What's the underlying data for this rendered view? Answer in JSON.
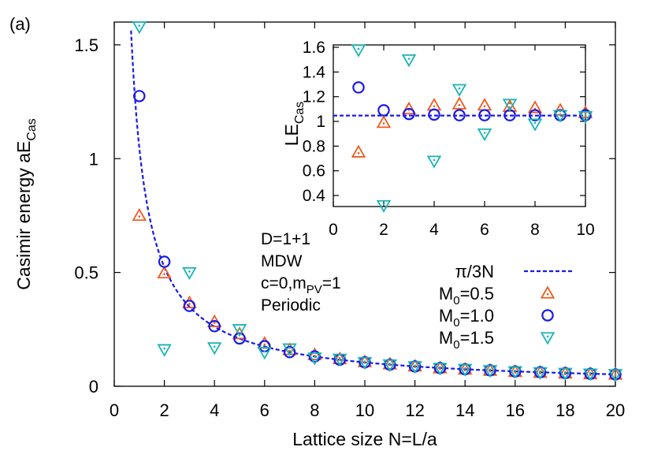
{
  "chart_data": [
    {
      "type": "scatter",
      "panel_label": "(a)",
      "xlabel": "Lattice size N=L/a",
      "ylabel": {
        "main": "Casimir energy aE",
        "sub": "Cas"
      },
      "xlim": [
        0,
        20
      ],
      "ylim": [
        0,
        1.6
      ],
      "xticks": [
        "0",
        "2",
        "4",
        "6",
        "8",
        "10",
        "12",
        "14",
        "16",
        "18",
        "20"
      ],
      "yticks": [
        "0",
        "0.5",
        "1",
        "1.5"
      ],
      "annotations": [
        "D=1+1",
        "MDW",
        "c=0,m",
        "PV",
        "=1",
        "Periodic"
      ],
      "legend_position": "center-right",
      "curve": {
        "name": "π/3N",
        "color": "#1a1ae6",
        "style": "dashed",
        "formula": "pi/(3N)"
      },
      "series": [
        {
          "name": "M",
          "name_sub": "0",
          "name_suffix": "=0.5",
          "marker": "triangle-up",
          "color": "#f05a1e",
          "x": [
            1,
            2,
            3,
            4,
            5,
            6,
            7,
            8,
            9,
            10,
            11,
            12,
            13,
            14,
            15,
            16,
            17,
            18,
            19,
            20
          ],
          "y": [
            0.75,
            0.497,
            0.366,
            0.283,
            0.23,
            0.188,
            0.16,
            0.138,
            0.12,
            0.107,
            0.097,
            0.088,
            0.08,
            0.074,
            0.069,
            0.064,
            0.06,
            0.057,
            0.054,
            0.052
          ]
        },
        {
          "name": "M",
          "name_sub": "0",
          "name_suffix": "=1.0",
          "marker": "circle",
          "color": "#1a1ae6",
          "x": [
            1,
            2,
            3,
            4,
            5,
            6,
            7,
            8,
            9,
            10,
            11,
            12,
            13,
            14,
            15,
            16,
            17,
            18,
            19,
            20
          ],
          "y": [
            1.275,
            0.547,
            0.353,
            0.264,
            0.21,
            0.176,
            0.15,
            0.131,
            0.117,
            0.105,
            0.095,
            0.087,
            0.08,
            0.075,
            0.07,
            0.065,
            0.062,
            0.058,
            0.055,
            0.052
          ]
        },
        {
          "name": "M",
          "name_sub": "0",
          "name_suffix": "=1.5",
          "marker": "triangle-down",
          "color": "#1ab4b4",
          "x": [
            1,
            2,
            3,
            4,
            5,
            6,
            7,
            8,
            9,
            10,
            11,
            12,
            13,
            14,
            15,
            16,
            17,
            18,
            19,
            20
          ],
          "y": [
            1.58,
            0.162,
            0.5,
            0.17,
            0.25,
            0.15,
            0.165,
            0.125,
            0.12,
            0.105,
            0.095,
            0.087,
            0.08,
            0.075,
            0.07,
            0.065,
            0.061,
            0.058,
            0.055,
            0.052
          ]
        }
      ]
    },
    {
      "type": "scatter",
      "role": "inset",
      "ylabel": {
        "main": "LE",
        "sub": "Cas"
      },
      "xlim": [
        0,
        10
      ],
      "ylim": [
        0.25,
        1.65
      ],
      "xticks": [
        "0",
        "2",
        "4",
        "6",
        "8",
        "10"
      ],
      "yticks": [
        "0.4",
        "0.6",
        "0.8",
        "1",
        "1.2",
        "1.4",
        "1.6"
      ],
      "reference_line": {
        "y": 1.047,
        "color": "#1a1ae6",
        "style": "dashed"
      },
      "series": [
        {
          "name": "M0=0.5",
          "marker": "triangle-up",
          "color": "#f05a1e",
          "x": [
            1,
            2,
            3,
            4,
            5,
            6,
            7,
            8,
            9,
            10
          ],
          "y": [
            0.75,
            0.99,
            1.1,
            1.13,
            1.14,
            1.13,
            1.12,
            1.11,
            1.09,
            1.07
          ]
        },
        {
          "name": "M0=1.0",
          "marker": "circle",
          "color": "#1a1ae6",
          "x": [
            1,
            2,
            3,
            4,
            5,
            6,
            7,
            8,
            9,
            10
          ],
          "y": [
            1.275,
            1.09,
            1.06,
            1.055,
            1.05,
            1.05,
            1.05,
            1.05,
            1.05,
            1.05
          ]
        },
        {
          "name": "M0=1.5",
          "marker": "triangle-down",
          "color": "#1ab4b4",
          "x": [
            1,
            2,
            3,
            4,
            5,
            6,
            7,
            8,
            9,
            10
          ],
          "y": [
            1.58,
            0.32,
            1.5,
            0.68,
            1.26,
            0.9,
            1.14,
            0.98,
            1.05,
            1.04
          ]
        }
      ]
    }
  ]
}
